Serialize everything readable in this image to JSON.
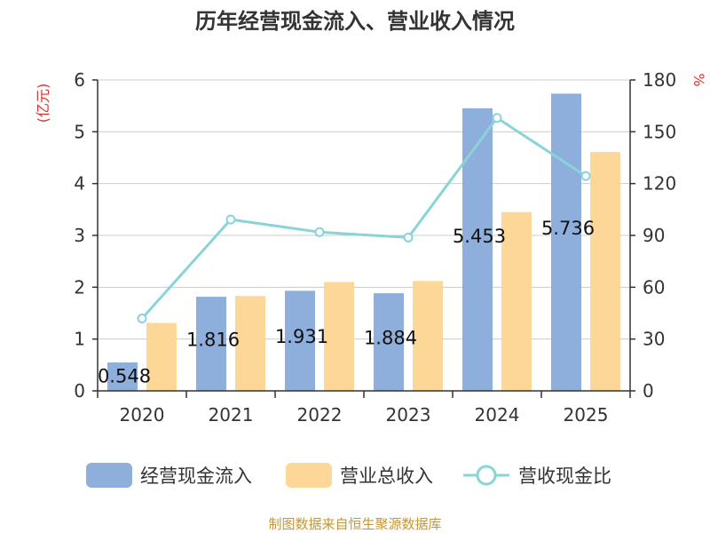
{
  "chart_data": {
    "type": "bar",
    "title": "历年经营现金流入、营业收入情况",
    "left_axis_unit": "(亿元)",
    "right_axis_unit": "%",
    "categories": [
      "2020",
      "2021",
      "2022",
      "2023",
      "2024",
      "2025"
    ],
    "ylim_left": [
      0,
      6
    ],
    "left_ticks": [
      "0",
      "1",
      "2",
      "3",
      "4",
      "5",
      "6"
    ],
    "ylim_right": [
      0,
      180
    ],
    "right_ticks": [
      "0",
      "30",
      "60",
      "90",
      "120",
      "150",
      "180"
    ],
    "series": [
      {
        "name": "经营现金流入",
        "type": "bar",
        "axis": "left",
        "color": "#8eaedb",
        "values": [
          0.548,
          1.816,
          1.931,
          1.884,
          5.453,
          5.736
        ],
        "labels": [
          "0.548",
          "1.816",
          "1.931",
          "1.884",
          "5.453",
          "5.736"
        ]
      },
      {
        "name": "营业总收入",
        "type": "bar",
        "axis": "left",
        "color": "#fdd797",
        "values": [
          1.31,
          1.83,
          2.1,
          2.12,
          3.45,
          4.61
        ]
      },
      {
        "name": "营收现金比",
        "type": "line",
        "axis": "right",
        "color": "#88d4d8",
        "values": [
          41.9,
          99.2,
          91.9,
          88.8,
          158.0,
          124.4
        ]
      }
    ],
    "grid": true,
    "legend_position": "bottom",
    "source": "制图数据来自恒生聚源数据库"
  }
}
